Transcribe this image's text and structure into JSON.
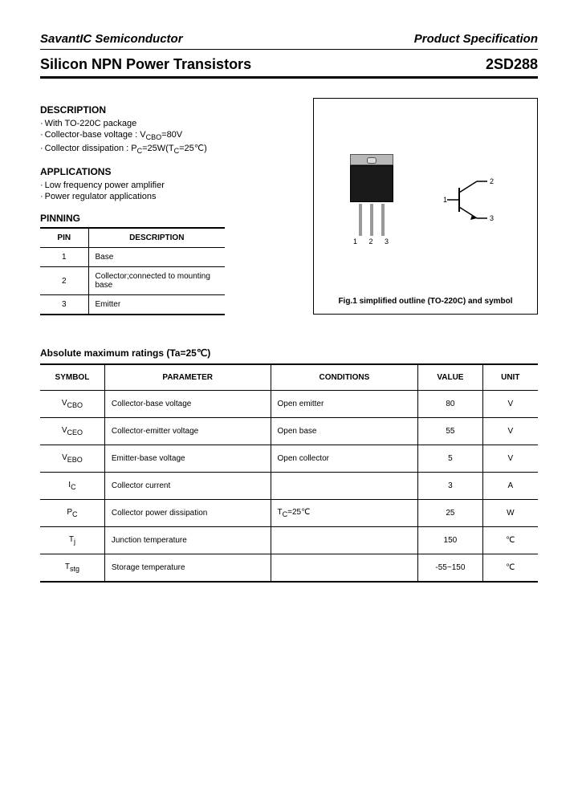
{
  "header": {
    "company": "SavantIC Semiconductor",
    "doc_type": "Product Specification"
  },
  "title": {
    "left": "Silicon NPN Power Transistors",
    "right": "2SD288"
  },
  "description": {
    "heading": "DESCRIPTION",
    "items": [
      "With TO-220C package",
      "Collector-base voltage : V<CBO>=80V",
      "Collector dissipation : P<C>=25W(T<C>=25℃)"
    ]
  },
  "applications": {
    "heading": "APPLICATIONS",
    "items": [
      "Low frequency power amplifier",
      "Power regulator applications"
    ]
  },
  "pinning": {
    "heading": "PINNING",
    "columns": [
      "PIN",
      "DESCRIPTION"
    ],
    "rows": [
      [
        "1",
        "Base"
      ],
      [
        "2",
        "Collector;connected to mounting base"
      ],
      [
        "3",
        "Emitter"
      ]
    ]
  },
  "figure": {
    "pin_labels": "1 2 3",
    "symbol_pins": {
      "p1": "1",
      "p2": "2",
      "p3": "3"
    },
    "caption": "Fig.1 simplified outline (TO-220C) and symbol"
  },
  "ratings": {
    "heading": "Absolute maximum ratings (Ta=25℃)",
    "columns": [
      "SYMBOL",
      "PARAMETER",
      "CONDITIONS",
      "VALUE",
      "UNIT"
    ],
    "rows": [
      {
        "symbol": "V<CBO>",
        "parameter": "Collector-base voltage",
        "conditions": "Open emitter",
        "value": "80",
        "unit": "V"
      },
      {
        "symbol": "V<CEO>",
        "parameter": "Collector-emitter voltage",
        "conditions": "Open base",
        "value": "55",
        "unit": "V"
      },
      {
        "symbol": "V<EBO>",
        "parameter": "Emitter-base voltage",
        "conditions": "Open collector",
        "value": "5",
        "unit": "V"
      },
      {
        "symbol": "I<C>",
        "parameter": "Collector current",
        "conditions": "",
        "value": "3",
        "unit": "A"
      },
      {
        "symbol": "P<C>",
        "parameter": "Collector power dissipation",
        "conditions": "T<C>=25℃",
        "value": "25",
        "unit": "W"
      },
      {
        "symbol": "T<j>",
        "parameter": "Junction temperature",
        "conditions": "",
        "value": "150",
        "unit": "℃"
      },
      {
        "symbol": "T<stg>",
        "parameter": "Storage temperature",
        "conditions": "",
        "value": "-55~150",
        "unit": "℃"
      }
    ]
  },
  "colors": {
    "text": "#000000",
    "bg": "#ffffff",
    "rule": "#000000",
    "package_tab": "#b8b8b8",
    "package_body": "#1a1a1a",
    "leg": "#999999"
  }
}
